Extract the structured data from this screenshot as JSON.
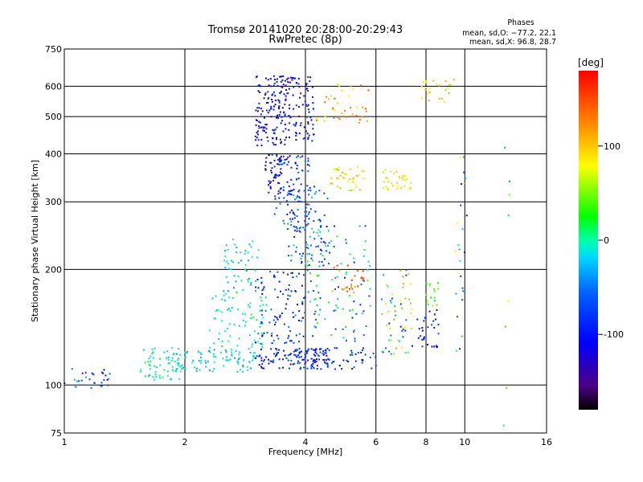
{
  "chart_data": {
    "type": "scatter",
    "title": "Tromsø 20141020 20:28:00-20:29:43",
    "subtitle": "RwPretec (8p)",
    "xlabel": "Frequency [MHz]",
    "ylabel": "Stationary phase Virtual Height [km]",
    "x_scale": "log",
    "y_scale": "log",
    "xlim": [
      1,
      16
    ],
    "ylim": [
      75,
      750
    ],
    "x_ticks": [
      1,
      2,
      4,
      6,
      8,
      10,
      16
    ],
    "y_ticks": [
      75,
      100,
      200,
      300,
      400,
      500,
      600,
      750
    ],
    "grid": true,
    "stats": {
      "header": "Phases",
      "line1": "mean, sd,O: −77.2, 22.1",
      "line2": "mean, sd,X:  96.8, 28.7"
    },
    "colorbar": {
      "label": "[deg]",
      "ticks": [
        100,
        0,
        -100
      ],
      "range": [
        -180,
        180
      ],
      "colormap": "rainbow"
    },
    "clusters": [
      {
        "xr": [
          1.0,
          1.3
        ],
        "yr": [
          97,
          112
        ],
        "pr": [
          -120,
          -20
        ],
        "n": 30
      },
      {
        "xr": [
          1.55,
          1.95
        ],
        "yr": [
          103,
          125
        ],
        "pr": [
          -30,
          20
        ],
        "n": 60
      },
      {
        "xr": [
          1.9,
          3.0
        ],
        "yr": [
          108,
          125
        ],
        "pr": [
          -40,
          10
        ],
        "n": 90
      },
      {
        "xr": [
          2.3,
          3.2
        ],
        "yr": [
          125,
          175
        ],
        "pr": [
          -30,
          20
        ],
        "n": 70
      },
      {
        "xr": [
          2.5,
          3.1
        ],
        "yr": [
          175,
          240
        ],
        "pr": [
          -40,
          10
        ],
        "n": 50
      },
      {
        "xr": [
          3.0,
          4.6
        ],
        "yr": [
          110,
          125
        ],
        "pr": [
          -130,
          -60
        ],
        "n": 110
      },
      {
        "xr": [
          3.8,
          6.0
        ],
        "yr": [
          110,
          125
        ],
        "pr": [
          -110,
          -60
        ],
        "n": 70
      },
      {
        "xr": [
          3.0,
          4.0
        ],
        "yr": [
          128,
          200
        ],
        "pr": [
          -120,
          -40
        ],
        "n": 100
      },
      {
        "xr": [
          3.0,
          3.65
        ],
        "yr": [
          420,
          640
        ],
        "pr": [
          -140,
          -80
        ],
        "n": 150
      },
      {
        "xr": [
          3.6,
          4.2
        ],
        "yr": [
          430,
          640
        ],
        "pr": [
          -140,
          -80
        ],
        "n": 80
      },
      {
        "xr": [
          3.15,
          3.5
        ],
        "yr": [
          310,
          400
        ],
        "pr": [
          -140,
          -80
        ],
        "n": 50
      },
      {
        "xr": [
          3.35,
          4.1
        ],
        "yr": [
          250,
          400
        ],
        "pr": [
          -120,
          -40
        ],
        "n": 100
      },
      {
        "xr": [
          3.6,
          4.6
        ],
        "yr": [
          200,
          330
        ],
        "pr": [
          -110,
          -20
        ],
        "n": 90
      },
      {
        "xr": [
          4.0,
          5.9
        ],
        "yr": [
          130,
          260
        ],
        "pr": [
          -100,
          40
        ],
        "n": 100
      },
      {
        "xr": [
          4.6,
          5.6
        ],
        "yr": [
          170,
          205
        ],
        "pr": [
          110,
          170
        ],
        "n": 25
      },
      {
        "xr": [
          4.6,
          5.6
        ],
        "yr": [
          320,
          370
        ],
        "pr": [
          60,
          120
        ],
        "n": 40
      },
      {
        "xr": [
          4.2,
          5.8
        ],
        "yr": [
          480,
          610
        ],
        "pr": [
          60,
          150
        ],
        "n": 40
      },
      {
        "xr": [
          6.2,
          7.4
        ],
        "yr": [
          320,
          365
        ],
        "pr": [
          60,
          110
        ],
        "n": 35
      },
      {
        "xr": [
          6.2,
          7.4
        ],
        "yr": [
          120,
          200
        ],
        "pr": [
          -100,
          130
        ],
        "n": 60
      },
      {
        "xr": [
          7.6,
          8.6
        ],
        "yr": [
          125,
          160
        ],
        "pr": [
          -130,
          -70
        ],
        "n": 30
      },
      {
        "xr": [
          7.8,
          9.4
        ],
        "yr": [
          540,
          630
        ],
        "pr": [
          60,
          120
        ],
        "n": 25
      },
      {
        "xr": [
          8.0,
          8.6
        ],
        "yr": [
          160,
          185
        ],
        "pr": [
          20,
          60
        ],
        "n": 15
      },
      {
        "xr": [
          9.5,
          10.2
        ],
        "yr": [
          120,
          420
        ],
        "pr": [
          -120,
          130
        ],
        "n": 25
      },
      {
        "xr": [
          12.5,
          13.0
        ],
        "yr": [
          78,
          470
        ],
        "pr": [
          -100,
          140
        ],
        "n": 8
      }
    ]
  }
}
